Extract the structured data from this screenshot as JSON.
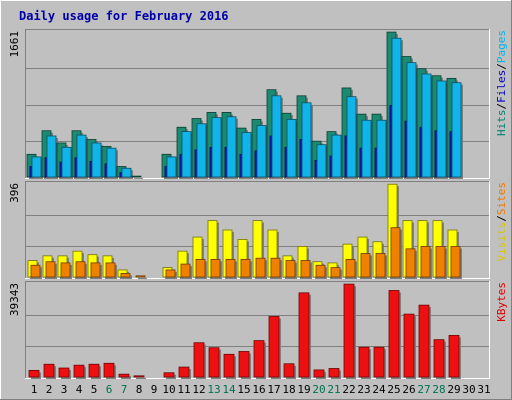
{
  "chart_data": {
    "type": "bar",
    "title": "Daily usage for February 2016",
    "categories": [
      "1",
      "2",
      "3",
      "4",
      "5",
      "6",
      "7",
      "8",
      "9",
      "10",
      "11",
      "12",
      "13",
      "14",
      "15",
      "16",
      "17",
      "18",
      "19",
      "20",
      "21",
      "22",
      "23",
      "24",
      "25",
      "26",
      "27",
      "28",
      "29",
      "30",
      "31"
    ],
    "weekend_days": [
      6,
      7,
      13,
      14,
      20,
      21,
      27,
      28
    ],
    "panels": [
      {
        "name": "hits-files-pages",
        "ymax_label": "1661",
        "ymax": 1661,
        "legend": [
          {
            "label": "Hits",
            "color": "#00806f"
          },
          {
            "label": "/",
            "color": "#000000"
          },
          {
            "label": "Files",
            "color": "#0000c0"
          },
          {
            "label": "/",
            "color": "#000000"
          },
          {
            "label": "Pages",
            "color": "#00b4e6"
          }
        ],
        "series": [
          {
            "name": "Hits",
            "color": "#1c8a70",
            "values": [
              260,
              530,
              390,
              530,
              430,
              350,
              120,
              10,
              0,
              260,
              570,
              670,
              740,
              740,
              560,
              660,
              1000,
              730,
              930,
              410,
              520,
              1020,
              720,
              720,
              1660,
              1380,
              1240,
              1160,
              1130,
              0,
              0
            ]
          },
          {
            "name": "Files",
            "color": "#1818c8",
            "values": [
              120,
              220,
              170,
              220,
              180,
              150,
              50,
              0,
              0,
              120,
              260,
              310,
              340,
              340,
              260,
              300,
              470,
              340,
              430,
              190,
              240,
              470,
              330,
              330,
              820,
              640,
              570,
              530,
              520,
              0,
              0
            ]
          },
          {
            "name": "Pages",
            "color": "#10b4e8",
            "values": [
              230,
              470,
              340,
              480,
              390,
              330,
              100,
              0,
              0,
              230,
              520,
              610,
              680,
              690,
              510,
              590,
              930,
              660,
              850,
              370,
              480,
              920,
              650,
              650,
              1590,
              1310,
              1180,
              1100,
              1080,
              0,
              0
            ]
          }
        ]
      },
      {
        "name": "visits-sites",
        "ymax_label": "396",
        "ymax": 396,
        "legend": [
          {
            "label": "Visits",
            "color": "#d8c800"
          },
          {
            "label": "/",
            "color": "#000000"
          },
          {
            "label": "Sites",
            "color": "#f07800"
          }
        ],
        "series": [
          {
            "name": "Visits",
            "color": "#ffff00",
            "values": [
              70,
              90,
              90,
              110,
              95,
              90,
              30,
              0,
              0,
              40,
              110,
              170,
              240,
              200,
              160,
              240,
              200,
              90,
              130,
              65,
              60,
              140,
              170,
              150,
              395,
              240,
              240,
              240,
              200,
              0,
              0
            ]
          },
          {
            "name": "Sites",
            "color": "#f08000",
            "values": [
              50,
              65,
              60,
              65,
              60,
              60,
              15,
              5,
              0,
              30,
              55,
              75,
              75,
              75,
              75,
              80,
              80,
              70,
              70,
              50,
              40,
              75,
              100,
              100,
              210,
              120,
              130,
              130,
              130,
              0,
              0
            ]
          }
        ]
      },
      {
        "name": "kbytes",
        "ymax_label": "39343",
        "ymax": 39343,
        "legend": [
          {
            "label": "KBytes",
            "color": "#e00000"
          }
        ],
        "series": [
          {
            "name": "KBytes",
            "color": "#ee1010",
            "values": [
              2800,
              5400,
              3800,
              5000,
              5400,
              5800,
              1200,
              500,
              0,
              1800,
              4200,
              14500,
              12400,
              9600,
              10800,
              15400,
              25600,
              5600,
              35600,
              3000,
              3600,
              39300,
              12600,
              12600,
              36600,
              26600,
              30400,
              15800,
              17600,
              0,
              0
            ]
          }
        ]
      }
    ]
  }
}
